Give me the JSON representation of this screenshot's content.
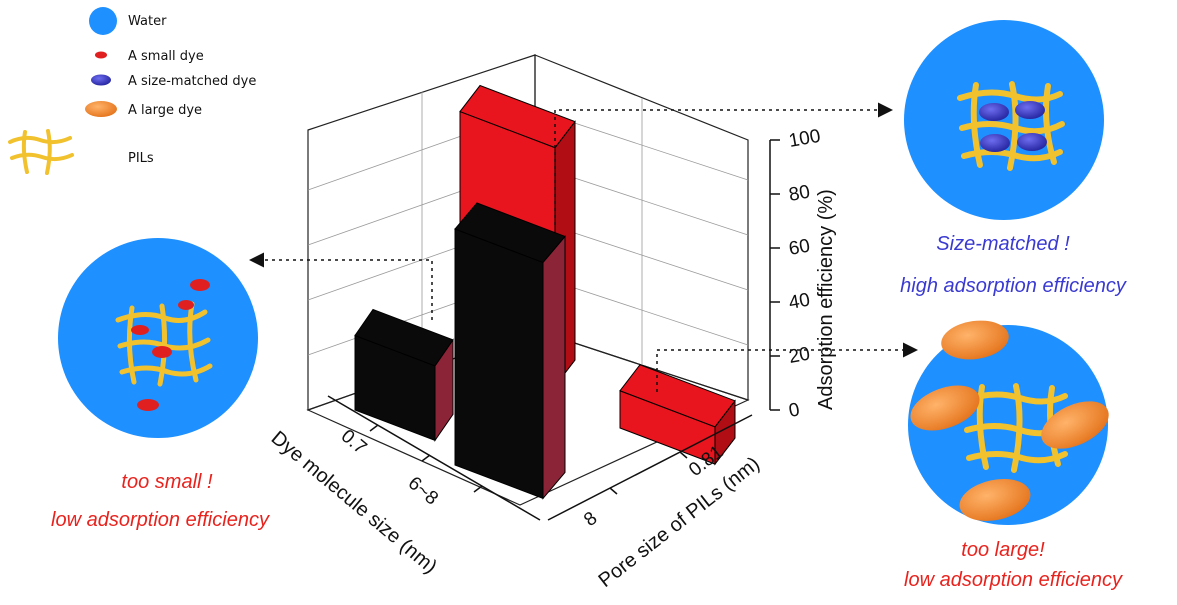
{
  "legend": {
    "items": [
      {
        "label": "Water",
        "icon": "water-circle-icon",
        "color": "#1e90ff"
      },
      {
        "label": "A small dye",
        "icon": "small-dye-icon",
        "color": "#e02020"
      },
      {
        "label": "A size-matched dye",
        "icon": "size-matched-dye-icon",
        "color": "#3b3bc8"
      },
      {
        "label": "A large dye",
        "icon": "large-dye-icon",
        "color": "#f08a2c"
      },
      {
        "label": "PILs",
        "icon": "pil-network-icon",
        "color": "#f2c12e"
      }
    ]
  },
  "captions": {
    "left_line1": "too small !",
    "left_line2": "low adsorption efficiency",
    "top_right_line1": "Size-matched !",
    "top_right_line2": "high adsorption efficiency",
    "bottom_right_line1": "too large!",
    "bottom_right_line2": "low adsorption efficiency"
  },
  "chart_data": {
    "type": "bar",
    "variant": "3d-bar",
    "zlabel": "Adsorption efficiency (%)",
    "xlabel": "Dye molecule size (nm)",
    "ylabel": "Pore size of PILs (nm)",
    "dye_size_ticks": [
      "0.7",
      "6~8"
    ],
    "pore_size_ticks": [
      "8",
      "0.81"
    ],
    "zticks": [
      "0",
      "20",
      "40",
      "60",
      "80",
      "100"
    ],
    "zlim": [
      0,
      100
    ],
    "series": [
      {
        "pore_size": "8",
        "color": "#0a0a0a",
        "side_color": "#8b2436",
        "values": [
          30,
          95
        ]
      },
      {
        "pore_size": "0.81",
        "color": "#e8141e",
        "side_color": "#b00d14",
        "values": [
          96,
          15
        ]
      }
    ]
  },
  "colors": {
    "water": "#1e90ff",
    "small_dye": "#e02020",
    "matched_dye": "#3b3bc8",
    "large_dye": "#f08a2c",
    "pil": "#f2c12e"
  }
}
